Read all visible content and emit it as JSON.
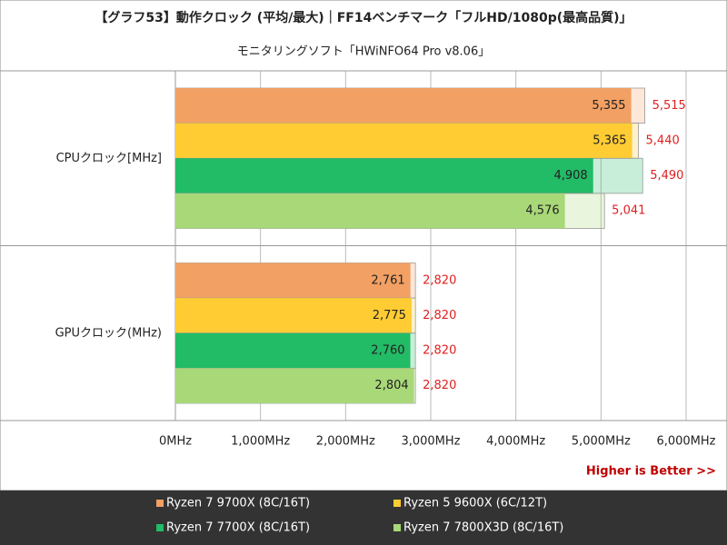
{
  "chart_data": {
    "type": "bar",
    "orientation": "horizontal",
    "title": "【グラフ53】動作クロック (平均/最大)｜FF14ベンチマーク「フルHD/1080p(最高品質)」",
    "subtitle": "モニタリングソフト「HWiNFO64 Pro v8.06」",
    "annotation": "Higher is Better >>",
    "categories": [
      "CPUクロック[MHz]",
      "GPUクロック(MHz)"
    ],
    "series": [
      {
        "name": "Ryzen 7 9700X (8C/16T)",
        "color": "#f2a064",
        "values": [
          5355,
          2761
        ],
        "value_labels": [
          "5,355",
          "2,761"
        ],
        "max": [
          5515,
          2820
        ],
        "max_labels": [
          "5,515",
          "2,820"
        ]
      },
      {
        "name": "Ryzen 5 9600X (6C/12T)",
        "color": "#ffcc33",
        "values": [
          5365,
          2775
        ],
        "value_labels": [
          "5,365",
          "2,775"
        ],
        "max": [
          5440,
          2820
        ],
        "max_labels": [
          "5,440",
          "2,820"
        ]
      },
      {
        "name": "Ryzen 7 7700X (8C/16T)",
        "color": "#22bb66",
        "values": [
          4908,
          2760
        ],
        "value_labels": [
          "4,908",
          "2,760"
        ],
        "max": [
          5490,
          2820
        ],
        "max_labels": [
          "5,490",
          "2,820"
        ]
      },
      {
        "name": "Ryzen 7 7800X3D (8C/16T)",
        "color": "#a8d878",
        "values": [
          4576,
          2804
        ],
        "value_labels": [
          "4,576",
          "2,804"
        ],
        "max": [
          5041,
          2820
        ],
        "max_labels": [
          "5,041",
          "2,820"
        ]
      }
    ],
    "xlim": [
      0,
      6000
    ],
    "xticks": [
      {
        "value": 0,
        "label": "0MHz"
      },
      {
        "value": 1000,
        "label": "1,000MHz"
      },
      {
        "value": 2000,
        "label": "2,000MHz"
      },
      {
        "value": 3000,
        "label": "3,000MHz"
      },
      {
        "value": 4000,
        "label": "4,000MHz"
      },
      {
        "value": 5000,
        "label": "5,000MHz"
      },
      {
        "value": 6000,
        "label": "6,000MHz"
      }
    ],
    "grid": true
  }
}
